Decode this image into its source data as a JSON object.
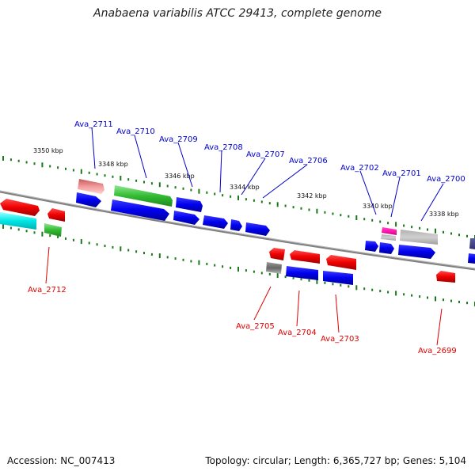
{
  "title": "Anabaena variabilis ATCC 29413, complete genome",
  "accession": "Accession: NC_007413",
  "topology_info": "Topology: circular; Length: 6,365,727 bp; Genes: 5,104",
  "colors": {
    "forward_label": "#0000cc",
    "reverse_label": "#dd0000",
    "backbone": "#808080",
    "tick": "#1a7a1a"
  },
  "kbp_labels": [
    "3350 kbp",
    "3348 kbp",
    "3346 kbp",
    "3344 kbp",
    "3342 kbp",
    "3340 kbp",
    "3338 kbp"
  ],
  "forward_genes": [
    "Ava_2711",
    "Ava_2710",
    "Ava_2709",
    "Ava_2708",
    "Ava_2707",
    "Ava_2706",
    "Ava_2702",
    "Ava_2701",
    "Ava_2700"
  ],
  "reverse_genes": [
    "Ava_2712",
    "Ava_2705",
    "Ava_2704",
    "Ava_2703",
    "Ava_2699"
  ]
}
